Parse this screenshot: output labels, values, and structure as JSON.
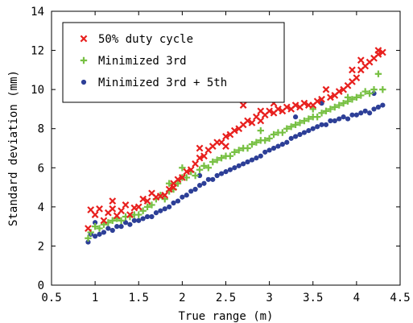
{
  "chart_data": {
    "type": "scatter",
    "title": "",
    "xlabel": "True range (m)",
    "ylabel": "Standard deviation (mm)",
    "xlim": [
      0.5,
      4.5
    ],
    "ylim": [
      0,
      14
    ],
    "xticks": [
      0.5,
      1,
      1.5,
      2,
      2.5,
      3,
      3.5,
      4,
      4.5
    ],
    "xtick_labels": [
      "0.5",
      "1",
      "1.5",
      "2",
      "2.5",
      "3",
      "3.5",
      "4",
      "4.5"
    ],
    "yticks": [
      0,
      2,
      4,
      6,
      8,
      10,
      12,
      14
    ],
    "ytick_labels": [
      "0",
      "2",
      "4",
      "6",
      "8",
      "10",
      "12",
      "14"
    ],
    "grid": false,
    "legend_position": "top-left",
    "series": [
      {
        "name": "50% duty cycle",
        "marker": "x",
        "color": "#e8201e",
        "points": [
          [
            0.92,
            2.9
          ],
          [
            0.95,
            3.85
          ],
          [
            1.0,
            3.6
          ],
          [
            1.05,
            3.9
          ],
          [
            1.1,
            3.3
          ],
          [
            1.15,
            3.7
          ],
          [
            1.2,
            4.3
          ],
          [
            1.25,
            3.55
          ],
          [
            1.3,
            3.8
          ],
          [
            1.35,
            4.1
          ],
          [
            1.4,
            3.6
          ],
          [
            1.45,
            3.95
          ],
          [
            1.5,
            4.0
          ],
          [
            1.55,
            4.4
          ],
          [
            1.6,
            4.3
          ],
          [
            1.65,
            4.7
          ],
          [
            1.7,
            4.5
          ],
          [
            1.75,
            4.55
          ],
          [
            1.8,
            4.6
          ],
          [
            1.85,
            4.9
          ],
          [
            1.9,
            5.0
          ],
          [
            1.95,
            5.4
          ],
          [
            2.0,
            5.5
          ],
          [
            2.05,
            5.8
          ],
          [
            2.1,
            5.9
          ],
          [
            2.15,
            6.2
          ],
          [
            2.2,
            6.5
          ],
          [
            2.25,
            6.6
          ],
          [
            2.3,
            6.9
          ],
          [
            2.35,
            7.1
          ],
          [
            2.4,
            7.3
          ],
          [
            2.45,
            7.3
          ],
          [
            2.5,
            7.6
          ],
          [
            2.55,
            7.7
          ],
          [
            2.6,
            7.9
          ],
          [
            2.65,
            8.0
          ],
          [
            2.7,
            8.2
          ],
          [
            2.75,
            8.4
          ],
          [
            2.8,
            8.3
          ],
          [
            2.85,
            8.6
          ],
          [
            2.9,
            8.4
          ],
          [
            2.95,
            8.7
          ],
          [
            3.0,
            8.9
          ],
          [
            3.05,
            8.8
          ],
          [
            3.1,
            9.0
          ],
          [
            3.15,
            8.9
          ],
          [
            3.2,
            9.1
          ],
          [
            3.25,
            9.0
          ],
          [
            3.3,
            9.2
          ],
          [
            3.35,
            9.1
          ],
          [
            3.4,
            9.3
          ],
          [
            3.45,
            9.2
          ],
          [
            3.5,
            9.2
          ],
          [
            3.55,
            9.4
          ],
          [
            3.6,
            9.5
          ],
          [
            3.65,
            10.0
          ],
          [
            3.7,
            9.6
          ],
          [
            3.75,
            9.7
          ],
          [
            3.8,
            9.9
          ],
          [
            3.85,
            10.0
          ],
          [
            3.9,
            10.2
          ],
          [
            3.95,
            10.4
          ],
          [
            4.0,
            10.6
          ],
          [
            4.05,
            11.0
          ],
          [
            4.1,
            11.2
          ],
          [
            4.15,
            11.4
          ],
          [
            4.2,
            11.6
          ],
          [
            4.25,
            12.0
          ],
          [
            4.3,
            11.9
          ],
          [
            2.7,
            9.2
          ],
          [
            2.9,
            8.9
          ],
          [
            2.2,
            7.0
          ],
          [
            1.2,
            3.9
          ],
          [
            1.9,
            5.2
          ],
          [
            2.5,
            7.1
          ],
          [
            3.05,
            9.3
          ],
          [
            4.05,
            11.5
          ],
          [
            3.95,
            11.0
          ],
          [
            4.25,
            11.8
          ]
        ]
      },
      {
        "name": "Minimized 3rd",
        "marker": "+",
        "color": "#77c043",
        "points": [
          [
            0.92,
            2.4
          ],
          [
            0.95,
            2.7
          ],
          [
            1.0,
            3.0
          ],
          [
            1.05,
            2.9
          ],
          [
            1.1,
            3.1
          ],
          [
            1.15,
            3.2
          ],
          [
            1.2,
            3.3
          ],
          [
            1.25,
            3.4
          ],
          [
            1.3,
            3.3
          ],
          [
            1.35,
            3.5
          ],
          [
            1.4,
            3.5
          ],
          [
            1.45,
            3.6
          ],
          [
            1.5,
            3.6
          ],
          [
            1.55,
            3.8
          ],
          [
            1.6,
            4.0
          ],
          [
            1.65,
            4.1
          ],
          [
            1.7,
            4.4
          ],
          [
            1.75,
            4.6
          ],
          [
            1.8,
            4.4
          ],
          [
            1.85,
            4.8
          ],
          [
            1.9,
            4.9
          ],
          [
            1.95,
            5.2
          ],
          [
            2.0,
            5.5
          ],
          [
            2.05,
            5.5
          ],
          [
            2.1,
            5.8
          ],
          [
            2.15,
            5.6
          ],
          [
            2.2,
            5.9
          ],
          [
            2.25,
            6.1
          ],
          [
            2.3,
            6.0
          ],
          [
            2.35,
            6.3
          ],
          [
            2.4,
            6.4
          ],
          [
            2.45,
            6.5
          ],
          [
            2.5,
            6.6
          ],
          [
            2.55,
            6.6
          ],
          [
            2.6,
            6.8
          ],
          [
            2.65,
            6.9
          ],
          [
            2.7,
            7.0
          ],
          [
            2.75,
            7.0
          ],
          [
            2.8,
            7.2
          ],
          [
            2.85,
            7.3
          ],
          [
            2.9,
            7.4
          ],
          [
            2.95,
            7.4
          ],
          [
            3.0,
            7.5
          ],
          [
            3.05,
            7.7
          ],
          [
            3.1,
            7.8
          ],
          [
            3.15,
            7.8
          ],
          [
            3.2,
            8.0
          ],
          [
            3.25,
            8.1
          ],
          [
            3.3,
            8.2
          ],
          [
            3.35,
            8.3
          ],
          [
            3.4,
            8.4
          ],
          [
            3.45,
            8.5
          ],
          [
            3.5,
            8.6
          ],
          [
            3.55,
            8.6
          ],
          [
            3.6,
            8.8
          ],
          [
            3.65,
            8.9
          ],
          [
            3.7,
            9.0
          ],
          [
            3.75,
            9.1
          ],
          [
            3.8,
            9.2
          ],
          [
            3.85,
            9.3
          ],
          [
            3.9,
            9.4
          ],
          [
            3.95,
            9.5
          ],
          [
            4.0,
            9.6
          ],
          [
            4.05,
            9.7
          ],
          [
            4.1,
            9.9
          ],
          [
            4.15,
            9.8
          ],
          [
            4.2,
            10.0
          ],
          [
            4.25,
            10.8
          ],
          [
            4.3,
            10.0
          ],
          [
            1.85,
            5.2
          ],
          [
            2.0,
            6.0
          ],
          [
            2.9,
            7.9
          ],
          [
            3.5,
            9.0
          ],
          [
            3.9,
            9.6
          ]
        ]
      },
      {
        "name": "Minimized 3rd + 5th",
        "marker": "o",
        "color": "#2d3f97",
        "points": [
          [
            0.92,
            2.2
          ],
          [
            0.95,
            2.6
          ],
          [
            1.0,
            2.5
          ],
          [
            1.05,
            2.6
          ],
          [
            1.1,
            2.7
          ],
          [
            1.15,
            2.9
          ],
          [
            1.2,
            2.8
          ],
          [
            1.25,
            3.0
          ],
          [
            1.3,
            3.0
          ],
          [
            1.35,
            3.2
          ],
          [
            1.4,
            3.1
          ],
          [
            1.45,
            3.3
          ],
          [
            1.5,
            3.3
          ],
          [
            1.55,
            3.4
          ],
          [
            1.6,
            3.5
          ],
          [
            1.65,
            3.5
          ],
          [
            1.7,
            3.7
          ],
          [
            1.75,
            3.8
          ],
          [
            1.8,
            3.9
          ],
          [
            1.85,
            4.0
          ],
          [
            1.9,
            4.2
          ],
          [
            1.95,
            4.3
          ],
          [
            2.0,
            4.5
          ],
          [
            2.05,
            4.6
          ],
          [
            2.1,
            4.8
          ],
          [
            2.15,
            4.9
          ],
          [
            2.2,
            5.1
          ],
          [
            2.25,
            5.2
          ],
          [
            2.3,
            5.4
          ],
          [
            2.35,
            5.4
          ],
          [
            2.4,
            5.6
          ],
          [
            2.45,
            5.7
          ],
          [
            2.5,
            5.8
          ],
          [
            2.55,
            5.9
          ],
          [
            2.6,
            6.0
          ],
          [
            2.65,
            6.1
          ],
          [
            2.7,
            6.2
          ],
          [
            2.75,
            6.3
          ],
          [
            2.8,
            6.4
          ],
          [
            2.85,
            6.5
          ],
          [
            2.9,
            6.6
          ],
          [
            2.95,
            6.8
          ],
          [
            3.0,
            6.9
          ],
          [
            3.05,
            7.0
          ],
          [
            3.1,
            7.1
          ],
          [
            3.15,
            7.2
          ],
          [
            3.2,
            7.3
          ],
          [
            3.25,
            7.5
          ],
          [
            3.3,
            7.6
          ],
          [
            3.35,
            7.7
          ],
          [
            3.4,
            7.8
          ],
          [
            3.45,
            7.9
          ],
          [
            3.5,
            8.0
          ],
          [
            3.55,
            8.1
          ],
          [
            3.6,
            8.2
          ],
          [
            3.65,
            8.2
          ],
          [
            3.7,
            8.4
          ],
          [
            3.75,
            8.4
          ],
          [
            3.8,
            8.5
          ],
          [
            3.85,
            8.6
          ],
          [
            3.9,
            8.5
          ],
          [
            3.95,
            8.7
          ],
          [
            4.0,
            8.7
          ],
          [
            4.05,
            8.8
          ],
          [
            4.1,
            8.9
          ],
          [
            4.15,
            8.8
          ],
          [
            4.2,
            9.0
          ],
          [
            4.25,
            9.1
          ],
          [
            4.3,
            9.2
          ],
          [
            1.0,
            3.2
          ],
          [
            2.2,
            5.6
          ],
          [
            3.3,
            8.6
          ],
          [
            3.6,
            9.3
          ],
          [
            4.2,
            9.8
          ]
        ]
      }
    ]
  }
}
